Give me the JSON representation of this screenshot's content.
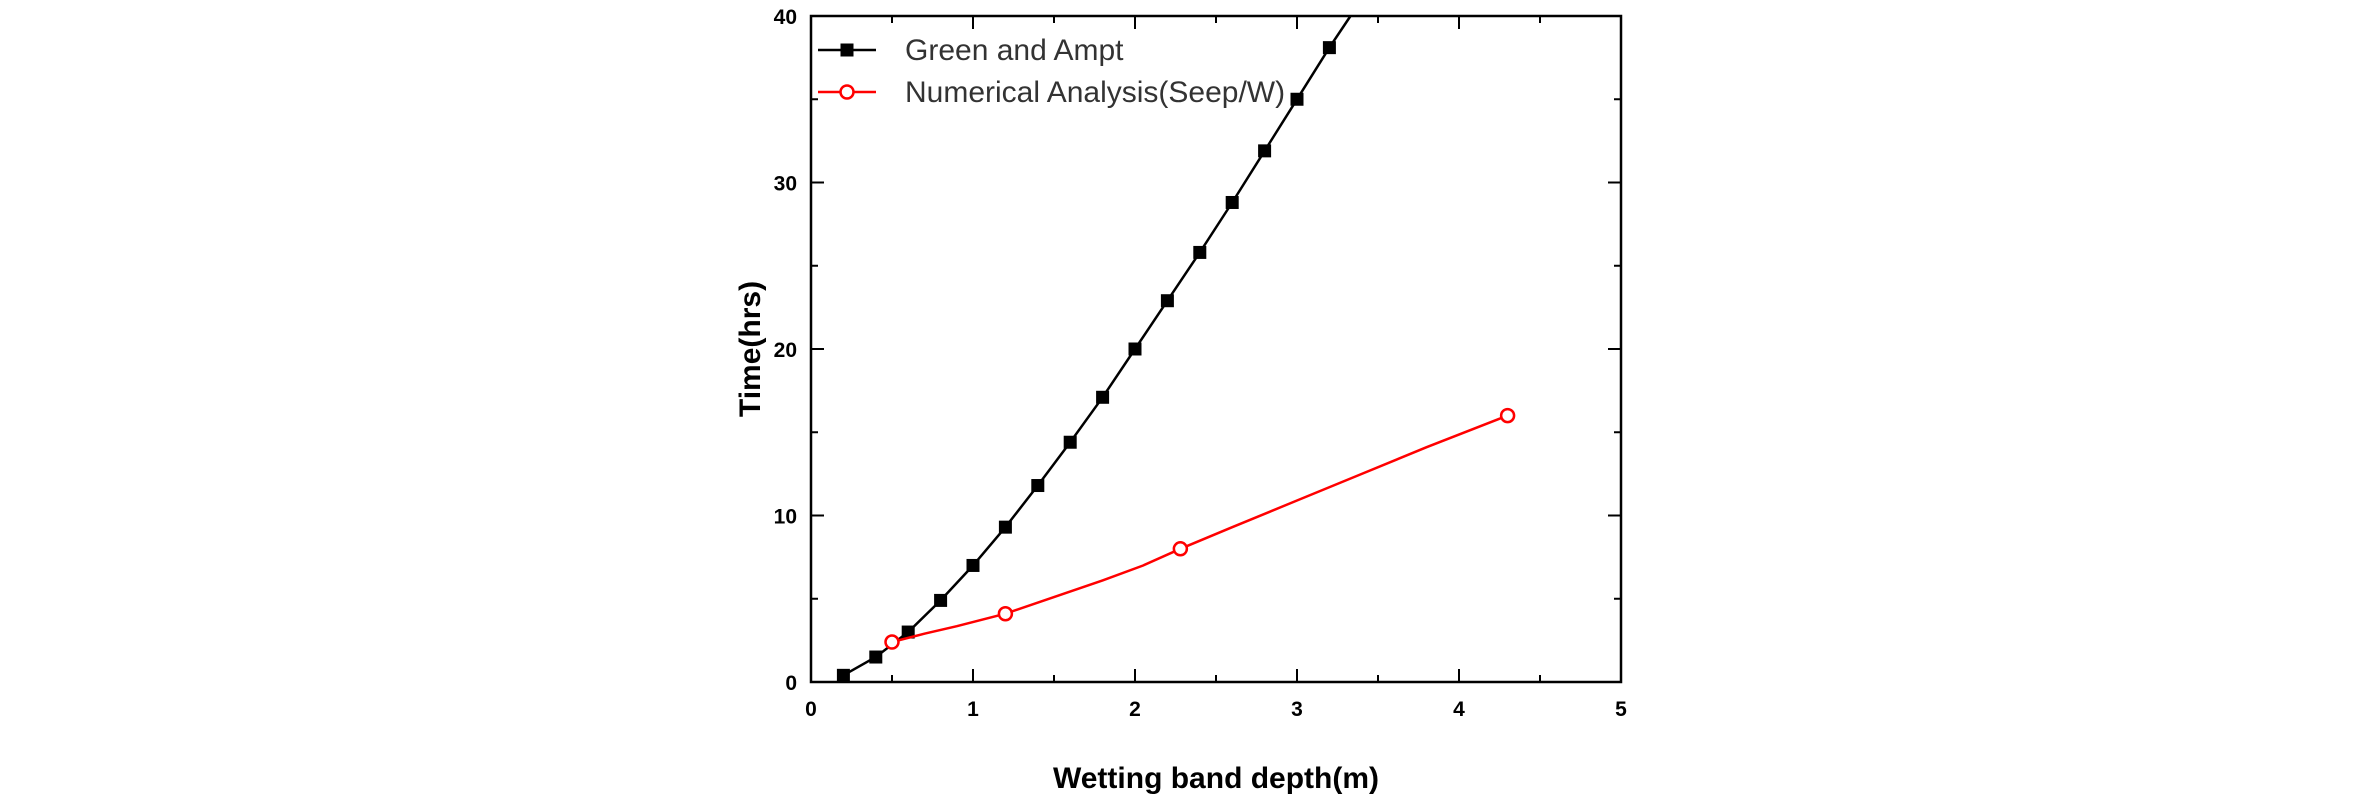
{
  "chart_data": {
    "type": "line",
    "title": "",
    "xlabel": "Wetting band depth(m)",
    "ylabel": "Time(hrs)",
    "xlim": [
      0,
      5
    ],
    "ylim": [
      0,
      40
    ],
    "x_ticks": [
      0,
      1,
      2,
      3,
      4,
      5
    ],
    "y_ticks": [
      0,
      10,
      20,
      30,
      40
    ],
    "grid": false,
    "legend_position": "top-left",
    "series": [
      {
        "name": "Green and Ampt",
        "color": "#000000",
        "marker": "filled-square",
        "curve_x": [
          0.2,
          0.4,
          0.6,
          0.8,
          1.0,
          1.2,
          1.4,
          1.6,
          1.8,
          2.0,
          2.2,
          2.4,
          2.6,
          2.8,
          3.0,
          3.2,
          3.33
        ],
        "curve_y": [
          0.4,
          1.5,
          3.0,
          4.9,
          7.0,
          9.3,
          11.8,
          14.4,
          17.1,
          20.0,
          22.9,
          25.8,
          28.8,
          31.9,
          35.0,
          38.1,
          40.0
        ],
        "x": [
          0.2,
          0.4,
          0.6,
          0.8,
          1.0,
          1.2,
          1.4,
          1.6,
          1.8,
          2.0,
          2.2,
          2.4,
          2.6,
          2.8,
          3.0,
          3.2
        ],
        "y": [
          0.4,
          1.5,
          3.0,
          4.9,
          7.0,
          9.3,
          11.8,
          14.4,
          17.1,
          20.0,
          22.9,
          25.8,
          28.8,
          31.9,
          35.0,
          38.1
        ]
      },
      {
        "name": "Numerical Analysis(Seep/W)",
        "color": "#ff0000",
        "marker": "open-circle",
        "curve_x": [
          0.5,
          0.7,
          0.9,
          1.2,
          1.5,
          1.8,
          2.05,
          2.28,
          2.6,
          3.0,
          3.4,
          3.8,
          4.3
        ],
        "curve_y": [
          2.4,
          2.9,
          3.35,
          4.1,
          5.1,
          6.1,
          7.0,
          8.0,
          9.3,
          10.9,
          12.5,
          14.1,
          16.0
        ],
        "x": [
          0.5,
          1.2,
          2.28,
          4.3
        ],
        "y": [
          2.4,
          4.1,
          8.0,
          16.0
        ]
      }
    ]
  }
}
